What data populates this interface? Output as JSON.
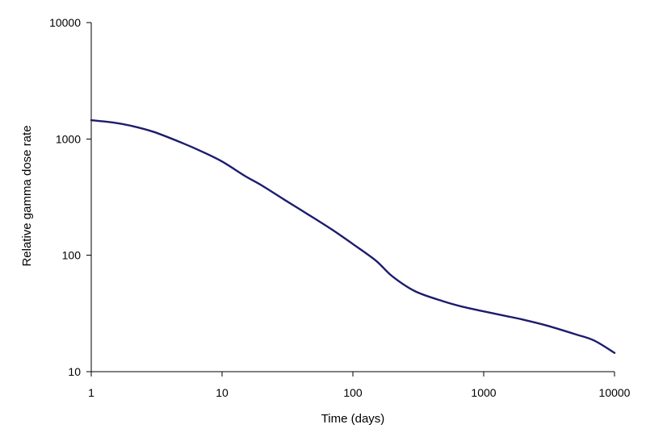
{
  "chart_data": {
    "type": "line",
    "xlabel": "Time (days)",
    "ylabel": "Relative gamma dose rate",
    "x_scale": "log",
    "y_scale": "log",
    "xlim": [
      1,
      10000
    ],
    "ylim": [
      10,
      10000
    ],
    "x_ticks": [
      "1",
      "10",
      "100",
      "1000",
      "10000"
    ],
    "y_ticks": [
      "10",
      "100",
      "1000",
      "10000"
    ],
    "grid": false,
    "legend": "none",
    "series": [
      {
        "color": "#1c1c6e",
        "x": [
          1,
          1.5,
          2,
          3,
          5,
          7,
          10,
          15,
          20,
          30,
          50,
          70,
          100,
          150,
          200,
          300,
          500,
          700,
          1000,
          1500,
          2000,
          3000,
          5000,
          7000,
          10000
        ],
        "y": [
          1450,
          1380,
          1300,
          1150,
          920,
          780,
          640,
          480,
          400,
          300,
          210,
          165,
          125,
          90,
          66,
          49,
          40,
          36,
          33,
          30,
          28,
          25,
          21,
          18.5,
          14.5
        ]
      }
    ]
  }
}
